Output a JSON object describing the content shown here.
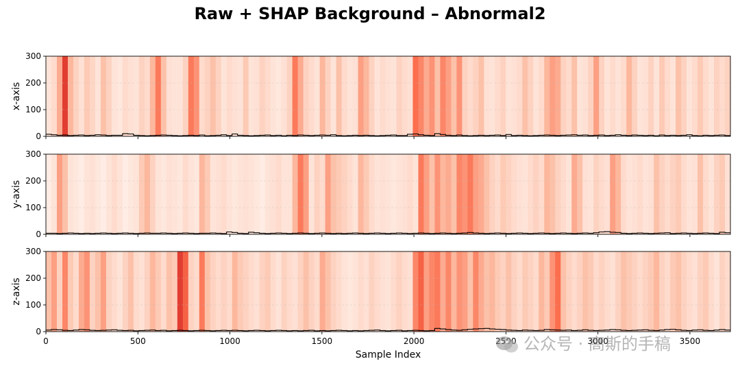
{
  "chart_data": {
    "type": "heatmap",
    "title": "Raw + SHAP Background – Abnormal2",
    "xlabel": "Sample Index",
    "xlim": [
      0,
      3720
    ],
    "x_ticks": [
      0,
      500,
      1000,
      1500,
      2000,
      2500,
      3000,
      3500
    ],
    "ylim": [
      0,
      300
    ],
    "y_ticks": [
      0,
      100,
      200,
      300
    ],
    "background": "SHAP importance heatmap (Reds colormap) behind raw signal",
    "colormap": [
      "#fff5f0",
      "#fcbba1",
      "#fb6a4a",
      "#cb181d"
    ],
    "panels": [
      {
        "ylabel": "x-axis",
        "signal": [
          8,
          6,
          4,
          5,
          3,
          4,
          5,
          3,
          4,
          6,
          5,
          3,
          4,
          4,
          10,
          9,
          4,
          3,
          2,
          3,
          4,
          5,
          4,
          3,
          2,
          3,
          4,
          3,
          5,
          2,
          3,
          4,
          6,
          3,
          9,
          4,
          3,
          2,
          3,
          4,
          5,
          3,
          4,
          2,
          4,
          3,
          5,
          4,
          3,
          4,
          5,
          4,
          6,
          3,
          2,
          3,
          4,
          3,
          4,
          3,
          2,
          3,
          4,
          5,
          3,
          3,
          8,
          9,
          6,
          4,
          3,
          10,
          7,
          4,
          3,
          5,
          3,
          2,
          3,
          4,
          3,
          4,
          5,
          3,
          7,
          3,
          4,
          3,
          2,
          3,
          4,
          5,
          4,
          3,
          4,
          5,
          6,
          4,
          5,
          3,
          4,
          5,
          3,
          4,
          6,
          4,
          3,
          5,
          4,
          3,
          4,
          2,
          5,
          3,
          4,
          3,
          4,
          6,
          3,
          2,
          4,
          3,
          4,
          5,
          3
        ],
        "shap_background": [
          0.1,
          0.15,
          0.4,
          0.85,
          0.35,
          0.2,
          0.12,
          0.25,
          0.18,
          0.1,
          0.3,
          0.2,
          0.1,
          0.08,
          0.15,
          0.12,
          0.1,
          0.2,
          0.15,
          0.35,
          0.6,
          0.3,
          0.12,
          0.1,
          0.1,
          0.2,
          0.6,
          0.5,
          0.15,
          0.2,
          0.3,
          0.2,
          0.1,
          0.15,
          0.12,
          0.1,
          0.25,
          0.1,
          0.12,
          0.2,
          0.15,
          0.1,
          0.08,
          0.12,
          0.2,
          0.6,
          0.4,
          0.2,
          0.15,
          0.1,
          0.35,
          0.2,
          0.1,
          0.3,
          0.15,
          0.1,
          0.12,
          0.45,
          0.35,
          0.2,
          0.1,
          0.15,
          0.12,
          0.1,
          0.2,
          0.15,
          0.12,
          0.65,
          0.55,
          0.4,
          0.5,
          0.3,
          0.55,
          0.45,
          0.3,
          0.5,
          0.2,
          0.15,
          0.2,
          0.3,
          0.12,
          0.1,
          0.15,
          0.2,
          0.1,
          0.12,
          0.15,
          0.3,
          0.2,
          0.1,
          0.15,
          0.35,
          0.45,
          0.4,
          0.2,
          0.15,
          0.3,
          0.1,
          0.12,
          0.2,
          0.45,
          0.2,
          0.1,
          0.15,
          0.1,
          0.15,
          0.35,
          0.2,
          0.1,
          0.12,
          0.2,
          0.1,
          0.25,
          0.15,
          0.1,
          0.3,
          0.2,
          0.1,
          0.15,
          0.25,
          0.15,
          0.1,
          0.2,
          0.15,
          0.2
        ]
      },
      {
        "ylabel": "y-axis",
        "signal": [
          4,
          4,
          3,
          4,
          5,
          4,
          3,
          4,
          3,
          4,
          5,
          4,
          3,
          4,
          5,
          4,
          3,
          4,
          5,
          4,
          4,
          5,
          4,
          3,
          4,
          5,
          4,
          3,
          4,
          4,
          5,
          4,
          3,
          9,
          7,
          4,
          3,
          8,
          6,
          4,
          3,
          4,
          5,
          4,
          3,
          4,
          5,
          4,
          3,
          4,
          5,
          4,
          3,
          4,
          3,
          4,
          5,
          4,
          3,
          4,
          5,
          4,
          3,
          4,
          5,
          4,
          3,
          4,
          5,
          4,
          3,
          4,
          5,
          4,
          3,
          4,
          5,
          7,
          5,
          4,
          3,
          4,
          5,
          4,
          3,
          4,
          5,
          4,
          3,
          4,
          5,
          4,
          3,
          4,
          5,
          4,
          3,
          4,
          5,
          4,
          6,
          9,
          10,
          8,
          7,
          4,
          3,
          4,
          5,
          4,
          3,
          4,
          5,
          6,
          3,
          4,
          5,
          4,
          3,
          4,
          5,
          4,
          3,
          8,
          6
        ],
        "shap_background": [
          0.05,
          0.1,
          0.45,
          0.3,
          0.1,
          0.08,
          0.05,
          0.1,
          0.12,
          0.08,
          0.05,
          0.1,
          0.15,
          0.1,
          0.05,
          0.08,
          0.1,
          0.25,
          0.35,
          0.2,
          0.1,
          0.08,
          0.12,
          0.1,
          0.08,
          0.15,
          0.1,
          0.08,
          0.35,
          0.25,
          0.1,
          0.12,
          0.15,
          0.1,
          0.08,
          0.1,
          0.12,
          0.1,
          0.08,
          0.05,
          0.1,
          0.12,
          0.15,
          0.1,
          0.1,
          0.35,
          0.6,
          0.45,
          0.1,
          0.2,
          0.15,
          0.45,
          0.3,
          0.25,
          0.2,
          0.15,
          0.1,
          0.35,
          0.25,
          0.15,
          0.1,
          0.12,
          0.1,
          0.08,
          0.1,
          0.12,
          0.15,
          0.1,
          0.6,
          0.45,
          0.3,
          0.5,
          0.35,
          0.4,
          0.3,
          0.55,
          0.5,
          0.6,
          0.45,
          0.4,
          0.3,
          0.2,
          0.15,
          0.25,
          0.2,
          0.15,
          0.12,
          0.1,
          0.15,
          0.2,
          0.15,
          0.35,
          0.3,
          0.2,
          0.15,
          0.1,
          0.4,
          0.3,
          0.12,
          0.1,
          0.2,
          0.15,
          0.12,
          0.45,
          0.35,
          0.15,
          0.1,
          0.12,
          0.15,
          0.1,
          0.12,
          0.3,
          0.2,
          0.15,
          0.2,
          0.25,
          0.15,
          0.1,
          0.12,
          0.3,
          0.15,
          0.1,
          0.2,
          0.25,
          0.12
        ]
      },
      {
        "ylabel": "z-axis",
        "signal": [
          6,
          8,
          7,
          5,
          4,
          6,
          8,
          7,
          5,
          4,
          5,
          6,
          7,
          5,
          4,
          5,
          3,
          4,
          5,
          6,
          4,
          5,
          3,
          4,
          5,
          4,
          3,
          4,
          5,
          4,
          3,
          4,
          5,
          4,
          5,
          4,
          3,
          4,
          5,
          4,
          3,
          4,
          5,
          4,
          3,
          4,
          3,
          4,
          5,
          3,
          4,
          3,
          4,
          5,
          4,
          3,
          4,
          3,
          4,
          5,
          6,
          4,
          3,
          4,
          5,
          3,
          4,
          5,
          4,
          3,
          4,
          12,
          10,
          8,
          6,
          5,
          7,
          9,
          10,
          11,
          12,
          10,
          9,
          8,
          6,
          5,
          4,
          6,
          5,
          4,
          5,
          8,
          7,
          6,
          5,
          6,
          4,
          5,
          7,
          5,
          4,
          5,
          6,
          8,
          7,
          5,
          4,
          5,
          6,
          7,
          5,
          4,
          6,
          8,
          9,
          7,
          5,
          4,
          6,
          7,
          5,
          4,
          6,
          8,
          6
        ],
        "shap_background": [
          0.3,
          0.45,
          0.2,
          0.55,
          0.25,
          0.15,
          0.4,
          0.5,
          0.2,
          0.3,
          0.45,
          0.2,
          0.15,
          0.1,
          0.2,
          0.3,
          0.15,
          0.12,
          0.2,
          0.35,
          0.25,
          0.15,
          0.3,
          0.25,
          0.85,
          0.7,
          0.2,
          0.15,
          0.6,
          0.3,
          0.2,
          0.15,
          0.2,
          0.15,
          0.35,
          0.25,
          0.2,
          0.15,
          0.12,
          0.2,
          0.25,
          0.15,
          0.1,
          0.2,
          0.15,
          0.12,
          0.2,
          0.3,
          0.2,
          0.15,
          0.4,
          0.3,
          0.2,
          0.15,
          0.1,
          0.08,
          0.1,
          0.15,
          0.12,
          0.2,
          0.15,
          0.12,
          0.1,
          0.15,
          0.2,
          0.15,
          0.12,
          0.55,
          0.7,
          0.45,
          0.55,
          0.6,
          0.4,
          0.55,
          0.35,
          0.5,
          0.45,
          0.3,
          0.55,
          0.4,
          0.3,
          0.35,
          0.25,
          0.2,
          0.3,
          0.2,
          0.15,
          0.25,
          0.2,
          0.15,
          0.35,
          0.25,
          0.5,
          0.65,
          0.3,
          0.2,
          0.15,
          0.2,
          0.3,
          0.25,
          0.15,
          0.2,
          0.15,
          0.12,
          0.2,
          0.3,
          0.25,
          0.2,
          0.15,
          0.2,
          0.25,
          0.35,
          0.2,
          0.15,
          0.25,
          0.3,
          0.2,
          0.15,
          0.12,
          0.2,
          0.25,
          0.15,
          0.1,
          0.2,
          0.15
        ]
      }
    ]
  },
  "watermark": {
    "text": "公众号 · 高斯的手稿",
    "icon": "wechat-icon"
  }
}
